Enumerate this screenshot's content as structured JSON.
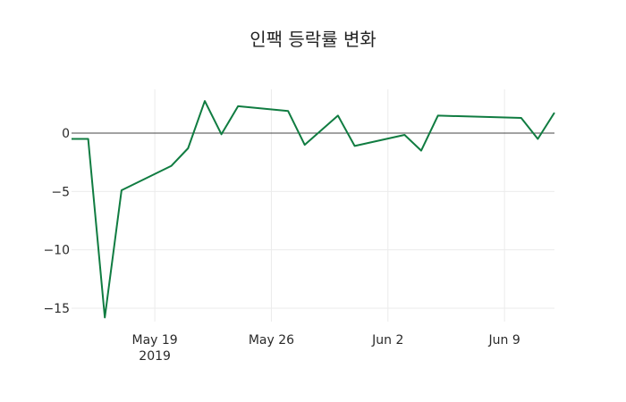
{
  "chart_data": {
    "type": "line",
    "title": "인팩 등락률 변화",
    "xlabel": "",
    "ylabel": "",
    "grid": true,
    "legend": null,
    "line_color": "#107c41",
    "zero_line_color": "#444444",
    "grid_color": "#ebebeb",
    "ylim": [
      -16.15,
      3.75
    ],
    "y_ticks": [
      0,
      -5,
      -10,
      -15
    ],
    "y_tick_labels": [
      "0",
      "−5",
      "−10",
      "−15"
    ],
    "x_ticks": [
      {
        "date": "2019-05-19",
        "label": "May 19",
        "sublabel": "2019"
      },
      {
        "date": "2019-05-26",
        "label": "May 26",
        "sublabel": ""
      },
      {
        "date": "2019-06-02",
        "label": "Jun 2",
        "sublabel": ""
      },
      {
        "date": "2019-06-09",
        "label": "Jun 9",
        "sublabel": ""
      }
    ],
    "xlim": [
      "2019-05-14",
      "2019-06-12"
    ],
    "x": [
      "2019-05-14",
      "2019-05-15",
      "2019-05-16",
      "2019-05-17",
      "2019-05-20",
      "2019-05-21",
      "2019-05-22",
      "2019-05-23",
      "2019-05-24",
      "2019-05-27",
      "2019-05-28",
      "2019-05-29",
      "2019-05-30",
      "2019-05-31",
      "2019-06-03",
      "2019-06-04",
      "2019-06-05",
      "2019-06-10",
      "2019-06-11",
      "2019-06-12"
    ],
    "series": [
      {
        "name": "등락률",
        "values": [
          -0.5,
          -0.5,
          -15.8,
          -4.9,
          -2.8,
          -1.3,
          2.75,
          -0.1,
          2.3,
          1.9,
          -1.0,
          0.25,
          1.5,
          -1.1,
          -0.15,
          -1.5,
          1.5,
          1.3,
          -0.5,
          1.75
        ]
      }
    ]
  }
}
